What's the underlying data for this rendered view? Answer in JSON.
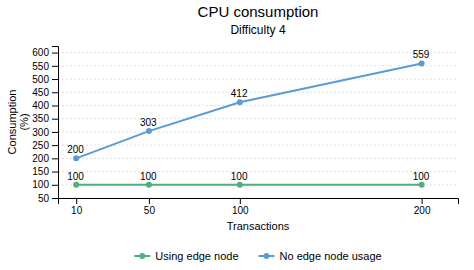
{
  "chart_data": {
    "type": "line",
    "title": "CPU consumption",
    "subtitle": "Difficulty 4",
    "xlabel": "Transactions",
    "ylabel": "Consumption\n(%)",
    "x": [
      10,
      50,
      100,
      200
    ],
    "series": [
      {
        "name": "Using edge node",
        "color": "#4CAF7D",
        "marker": "circle",
        "values": [
          100,
          100,
          100,
          100
        ]
      },
      {
        "name": "No edge node usage",
        "color": "#5B9BD5",
        "marker": "circle",
        "values": [
          200,
          303,
          412,
          559
        ]
      }
    ],
    "xlim": [
      0,
      220
    ],
    "xticks": [
      10,
      50,
      100,
      200
    ],
    "ylim": [
      50,
      625
    ],
    "yticks": [
      50,
      100,
      150,
      200,
      250,
      300,
      350,
      400,
      450,
      500,
      550,
      600
    ],
    "grid": true,
    "legend": "bottom",
    "data_labels": true
  }
}
